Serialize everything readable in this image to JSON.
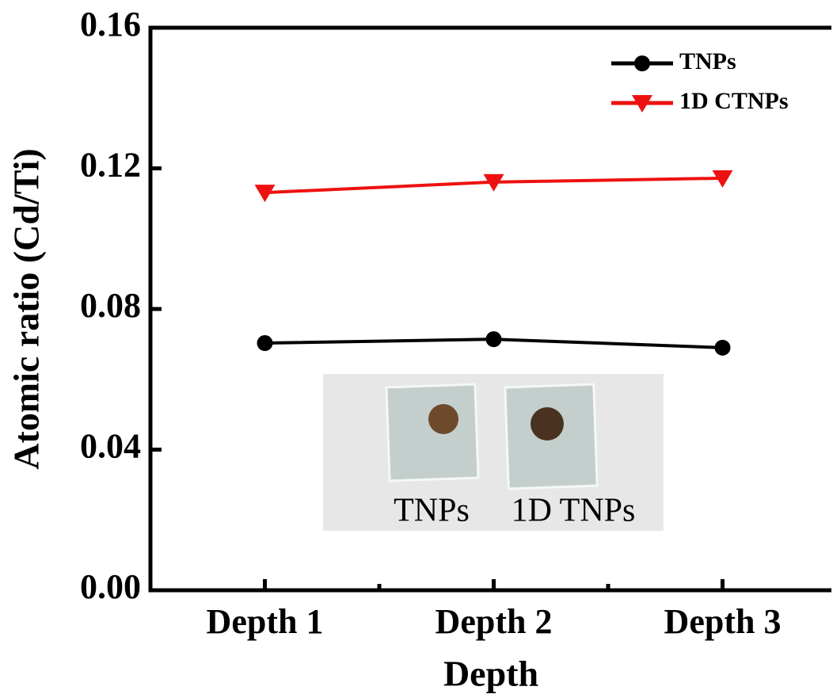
{
  "chart_data": {
    "type": "line",
    "xlabel": "Depth",
    "ylabel": "Atomic ratio (Cd/Ti)",
    "categories": [
      "Depth 1",
      "Depth 2",
      "Depth 3"
    ],
    "series": [
      {
        "name": "TNPs",
        "color": "#000000",
        "marker": "circle",
        "values": [
          0.0703,
          0.0714,
          0.069
        ]
      },
      {
        "name": "1D CTNPs",
        "color": "#ee1111",
        "marker": "triangle-down",
        "values": [
          0.1131,
          0.1161,
          0.1172
        ]
      }
    ],
    "ylim": [
      0,
      0.16
    ],
    "yticks": [
      {
        "value": 0,
        "label": "0.00"
      },
      0.04,
      0.08,
      0.12,
      0.16
    ],
    "legend": "upper right",
    "annotations": [
      "TNPs",
      "1D TNPs"
    ]
  }
}
